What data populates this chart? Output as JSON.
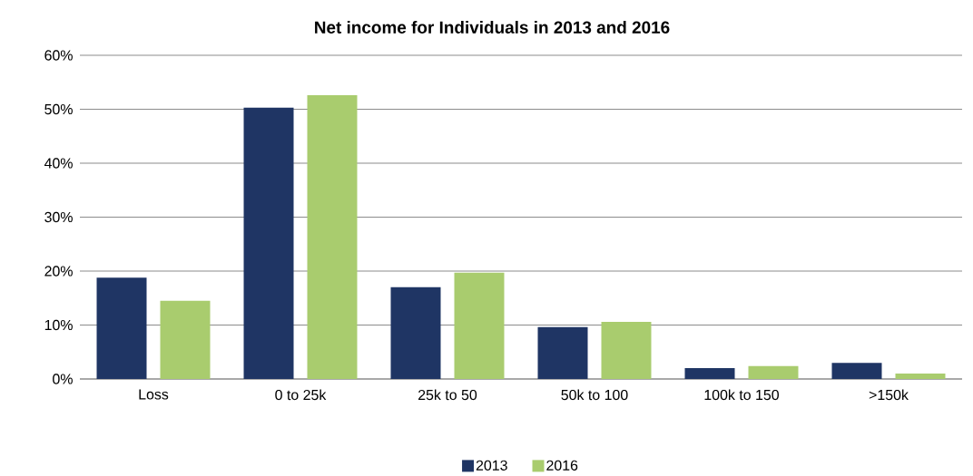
{
  "chart_data": {
    "type": "bar",
    "title": "Net income for Individuals in 2013 and 2016",
    "categories": [
      "Loss",
      "0 to 25k",
      "25k to 50",
      "50k to 100",
      "100k to 150",
      ">150k"
    ],
    "series": [
      {
        "name": "2013",
        "color": "#1f3564",
        "values": [
          18.8,
          50.3,
          17.0,
          9.6,
          2.0,
          3.0
        ]
      },
      {
        "name": "2016",
        "color": "#a9cc6e",
        "values": [
          14.5,
          52.6,
          19.7,
          10.6,
          2.4,
          1.0
        ]
      }
    ],
    "ylim": [
      0,
      60
    ],
    "yticks": [
      {
        "value": 0,
        "label": "0%"
      },
      {
        "value": 10,
        "label": "10%"
      },
      {
        "value": 20,
        "label": "20%"
      },
      {
        "value": 30,
        "label": "30%"
      },
      {
        "value": 40,
        "label": "40%"
      },
      {
        "value": 50,
        "label": "50%"
      },
      {
        "value": 60,
        "label": "60%"
      }
    ],
    "grid": "y",
    "legend": "bottom"
  }
}
